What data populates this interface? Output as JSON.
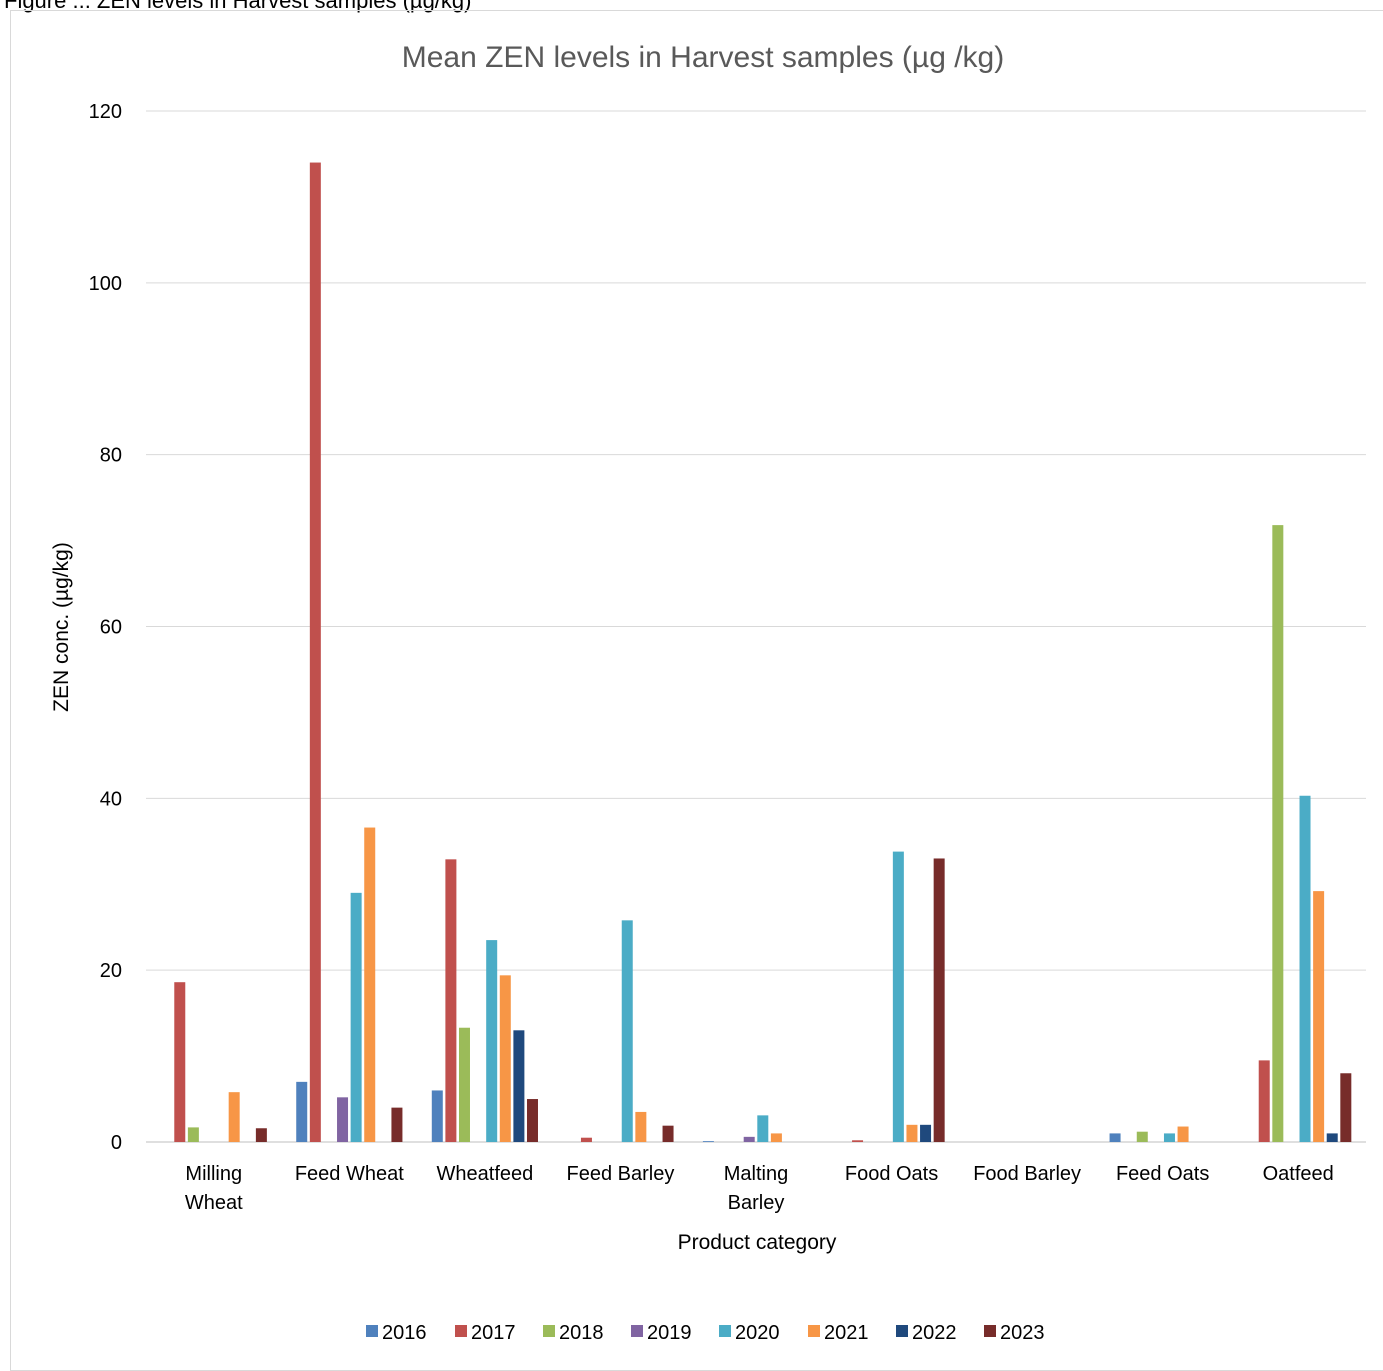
{
  "caption": "Figure ... ZEN levels in Harvest samples (µg/kg)",
  "chart_data": {
    "type": "bar",
    "title": "Mean ZEN levels in Harvest samples (µg /kg)",
    "xlabel": "Product category",
    "ylabel": "ZEN conc. (µg/kg)",
    "ylim": [
      0,
      120
    ],
    "yticks": [
      0,
      20,
      40,
      60,
      80,
      100,
      120
    ],
    "grid": true,
    "legend_position": "bottom",
    "categories": [
      "Milling Wheat",
      "Feed Wheat",
      "Wheatfeed",
      "Feed Barley",
      "Malting Barley",
      "Food Oats",
      "Food Barley",
      "Feed Oats",
      "Oatfeed"
    ],
    "series": [
      {
        "name": "2016",
        "color": "#4F81BD",
        "values": [
          0,
          7.0,
          6.0,
          0,
          0.1,
          0,
          0,
          1.0,
          0
        ]
      },
      {
        "name": "2017",
        "color": "#C0504D",
        "values": [
          18.6,
          114.0,
          32.9,
          0.5,
          0,
          0.2,
          0,
          0,
          9.5
        ]
      },
      {
        "name": "2018",
        "color": "#9BBB59",
        "values": [
          1.7,
          0,
          13.3,
          0,
          0,
          0,
          0,
          1.2,
          71.8
        ]
      },
      {
        "name": "2019",
        "color": "#8064A2",
        "values": [
          0,
          5.2,
          0,
          0,
          0.6,
          0,
          0,
          0,
          0
        ]
      },
      {
        "name": "2020",
        "color": "#4BACC6",
        "values": [
          0,
          29.0,
          23.5,
          25.8,
          3.1,
          33.8,
          0,
          1.0,
          40.3
        ]
      },
      {
        "name": "2021",
        "color": "#F79646",
        "values": [
          5.8,
          36.6,
          19.4,
          3.5,
          1.0,
          2.0,
          0,
          1.8,
          29.2
        ]
      },
      {
        "name": "2022",
        "color": "#1F497D",
        "values": [
          0,
          0,
          13.0,
          0,
          0,
          2.0,
          0,
          0,
          1.0
        ]
      },
      {
        "name": "2023",
        "color": "#772C2A",
        "values": [
          1.6,
          4.0,
          5.0,
          1.9,
          0,
          33.0,
          0,
          0,
          8.0
        ]
      }
    ]
  }
}
